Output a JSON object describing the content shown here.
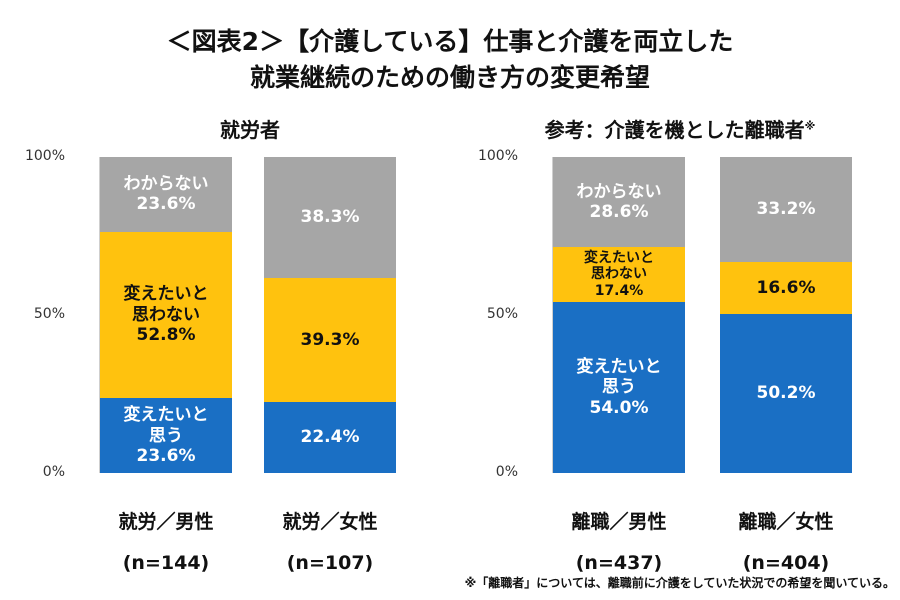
{
  "chart_data": {
    "type": "stacked_bar",
    "title": "＜図表2＞【介護している】仕事と介護を両立した",
    "subtitle": "就業継続のための働き方の変更希望",
    "footnote": "※「離職者」については、離職前に介護をしていた状況での希望を聞いている。",
    "colors": {
      "want_change": "#1a6fc4",
      "no_change": "#ffc20e",
      "unknown": "#a6a6a6"
    },
    "panels": [
      {
        "title": "就労者",
        "title_note": "",
        "yticks": [
          "100%",
          "50%",
          "0%"
        ],
        "ylim": [
          0,
          100
        ],
        "bars": [
          {
            "category": "就労／男性",
            "n": "(n=144)",
            "segments": [
              {
                "key": "want_change",
                "lines": [
                  "変えたいと",
                  "思う",
                  "23.6%"
                ],
                "value": 23.6
              },
              {
                "key": "no_change",
                "lines": [
                  "変えたいと",
                  "思わない",
                  "52.8%"
                ],
                "value": 52.8
              },
              {
                "key": "unknown",
                "lines": [
                  "わからない",
                  "23.6%"
                ],
                "value": 23.6
              }
            ]
          },
          {
            "category": "就労／女性",
            "n": "(n=107)",
            "segments": [
              {
                "key": "want_change",
                "lines": [
                  "22.4%"
                ],
                "value": 22.4
              },
              {
                "key": "no_change",
                "lines": [
                  "39.3%"
                ],
                "value": 39.3
              },
              {
                "key": "unknown",
                "lines": [
                  "38.3%"
                ],
                "value": 38.3
              }
            ]
          }
        ]
      },
      {
        "title": "参考：介護を機とした離職者",
        "title_note": "※",
        "yticks": [
          "100%",
          "50%",
          "0%"
        ],
        "ylim": [
          0,
          100
        ],
        "bars": [
          {
            "category": "離職／男性",
            "n": "(n=437)",
            "segments": [
              {
                "key": "want_change",
                "lines": [
                  "変えたいと",
                  "思う",
                  "54.0%"
                ],
                "value": 54.0
              },
              {
                "key": "no_change",
                "lines": [
                  "変えたいと",
                  "思わない",
                  "17.4%"
                ],
                "value": 17.4
              },
              {
                "key": "unknown",
                "lines": [
                  "わからない",
                  "28.6%"
                ],
                "value": 28.6
              }
            ]
          },
          {
            "category": "離職／女性",
            "n": "(n=404)",
            "segments": [
              {
                "key": "want_change",
                "lines": [
                  "50.2%"
                ],
                "value": 50.2
              },
              {
                "key": "no_change",
                "lines": [
                  "16.6%"
                ],
                "value": 16.6
              },
              {
                "key": "unknown",
                "lines": [
                  "33.2%"
                ],
                "value": 33.2
              }
            ]
          }
        ]
      }
    ]
  }
}
